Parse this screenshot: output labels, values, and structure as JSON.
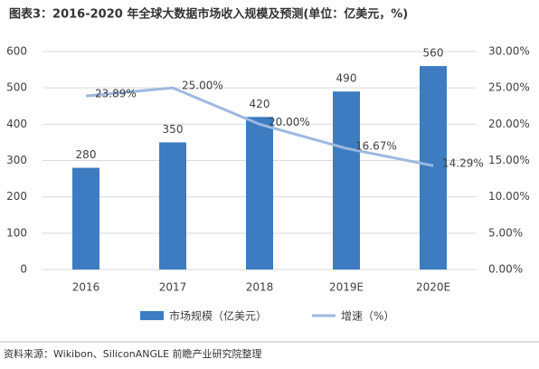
{
  "chart_data": {
    "type": "bar",
    "title": "图表3：2016-2020 年全球大数据市场收入规模及预测(单位：亿美元，%)",
    "source": "资料来源：Wikibon、SiliconANGLE 前瞻产业研究院整理",
    "categories": [
      "2016",
      "2017",
      "2018",
      "2019E",
      "2020E"
    ],
    "series": [
      {
        "name": "市场规模（亿美元）",
        "type": "bar",
        "color": "#3d7cc0",
        "values": [
          280,
          350,
          420,
          490,
          560
        ]
      },
      {
        "name": "增速（%）",
        "type": "line",
        "axis": "y2",
        "color": "#9db8e2",
        "values": [
          23.89,
          25.0,
          20.0,
          16.67,
          14.29
        ],
        "value_labels": [
          "23.89%",
          "25.00%",
          "20.00%",
          "16.67%",
          "14.29%"
        ]
      }
    ],
    "ylim": [
      0,
      600
    ],
    "yticks": [
      0,
      100,
      200,
      300,
      400,
      500,
      600
    ],
    "y2lim": [
      0,
      30
    ],
    "y2ticks": [
      {
        "value": 0,
        "label": "0.00%"
      },
      {
        "value": 5,
        "label": "5.00%"
      },
      {
        "value": 10,
        "label": "10.00%"
      },
      {
        "value": 15,
        "label": "15.00%"
      },
      {
        "value": 20,
        "label": "20.00%"
      },
      {
        "value": 25,
        "label": "25.00%"
      },
      {
        "value": 30,
        "label": "30.00%"
      }
    ],
    "grid": true
  }
}
